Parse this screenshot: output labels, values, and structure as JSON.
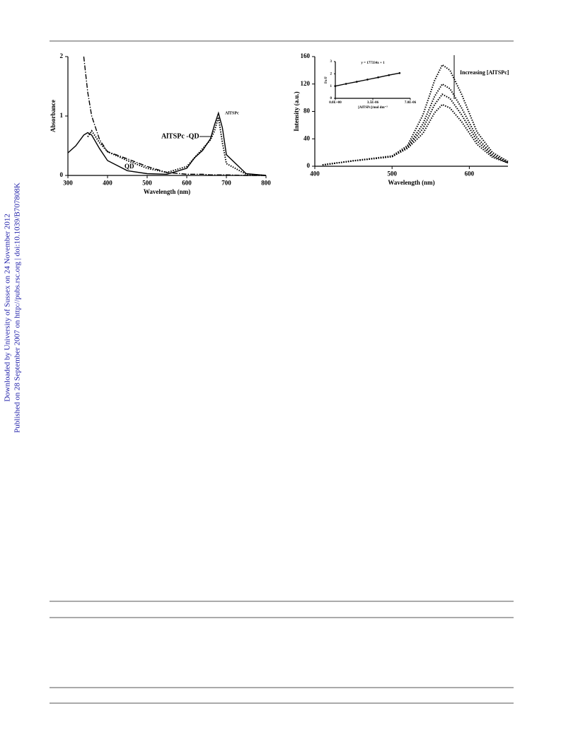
{
  "sidebar": [
    "Downloaded by University of Sussex on 24 November 2012",
    "Published on 28 September 2007 on http://pubs.rsc.org | doi:10.1039/B707808K"
  ],
  "chart_data": [
    {
      "type": "line",
      "xlabel": "Wavelength (nm)",
      "ylabel": "Absorbance",
      "x": [
        300,
        320,
        340,
        350,
        360,
        380,
        400,
        450,
        500,
        550,
        600,
        620,
        640,
        660,
        670,
        680,
        690,
        700,
        750,
        800
      ],
      "series": [
        {
          "color": "#000000",
          "style": "solid",
          "values": [
            0.38,
            0.5,
            0.68,
            0.72,
            0.68,
            0.45,
            0.25,
            0.08,
            0.03,
            0.02,
            0.12,
            0.3,
            0.42,
            0.62,
            0.85,
            1.05,
            0.8,
            0.35,
            0.03,
            0.0
          ]
        },
        {
          "color": "#000000",
          "style": "dashdot",
          "values": [
            null,
            null,
            2.0,
            1.4,
            1.0,
            0.6,
            0.4,
            0.28,
            0.15,
            0.05,
            0.02,
            0.02,
            0.02,
            0.01,
            0.01,
            0.01,
            0.01,
            0.01,
            0.0,
            0.0
          ]
        },
        {
          "color": "#000000",
          "style": "dotted",
          "values": [
            null,
            null,
            null,
            0.65,
            0.75,
            0.55,
            0.4,
            0.25,
            0.12,
            0.05,
            0.15,
            0.3,
            0.45,
            0.6,
            0.75,
            0.98,
            0.55,
            0.2,
            0.02,
            0.0
          ]
        }
      ],
      "xlim": [
        300,
        800
      ],
      "xticks": [
        300,
        400,
        500,
        600,
        700,
        800
      ],
      "ylim": [
        0,
        2
      ],
      "yticks": [
        0,
        1,
        2
      ],
      "annotations": [
        "AlTSPc",
        "AlTSPc -QD",
        "QD"
      ]
    },
    {
      "type": "line",
      "xlabel": "Wavelength (nm)",
      "ylabel": "Intensity (a.u.)",
      "x": [
        410,
        450,
        500,
        520,
        540,
        555,
        565,
        575,
        590,
        610,
        630,
        650
      ],
      "series": [
        {
          "color": "#000000",
          "style": "dotted",
          "values": [
            2,
            8,
            15,
            30,
            75,
            125,
            148,
            140,
            105,
            50,
            20,
            7
          ]
        },
        {
          "color": "#000000",
          "style": "dotted",
          "values": [
            2,
            8,
            14,
            28,
            62,
            102,
            120,
            113,
            85,
            42,
            17,
            6
          ]
        },
        {
          "color": "#000000",
          "style": "dotted",
          "values": [
            2,
            8,
            14,
            27,
            55,
            90,
            105,
            99,
            75,
            37,
            15,
            5
          ]
        },
        {
          "color": "#000000",
          "style": "dotted",
          "values": [
            2,
            8,
            14,
            26,
            48,
            78,
            90,
            85,
            65,
            32,
            13,
            5
          ]
        }
      ],
      "xlim": [
        400,
        650
      ],
      "xticks": [
        400,
        500,
        600
      ],
      "ylim": [
        0,
        160
      ],
      "yticks": [
        0,
        40,
        80,
        120,
        160
      ],
      "annotations": [
        "Increasing [AlTSPc]"
      ]
    },
    {
      "type": "line",
      "markers": true,
      "xlabel": "[AlTSPc]/mol dm⁻³",
      "ylabel": "Fo/F",
      "x": [
        0,
        1e-06,
        2e-06,
        3e-06,
        4e-06,
        5e-06,
        6e-06
      ],
      "series": [
        {
          "color": "#000000",
          "style": "solid",
          "values": [
            1,
            1.18,
            1.35,
            1.53,
            1.71,
            1.89,
            2.06
          ]
        }
      ],
      "xlim": [
        0,
        7e-06
      ],
      "xticks": [
        {
          "value": 0,
          "label": "0.0E+00"
        },
        {
          "value": 3.5e-06,
          "label": "3.5E-06"
        },
        {
          "value": 7e-06,
          "label": "7.0E-06"
        }
      ],
      "ylim": [
        0,
        3
      ],
      "yticks": [
        0,
        1,
        2,
        3
      ],
      "annotations": [
        "y = 177334x + 1"
      ]
    }
  ]
}
